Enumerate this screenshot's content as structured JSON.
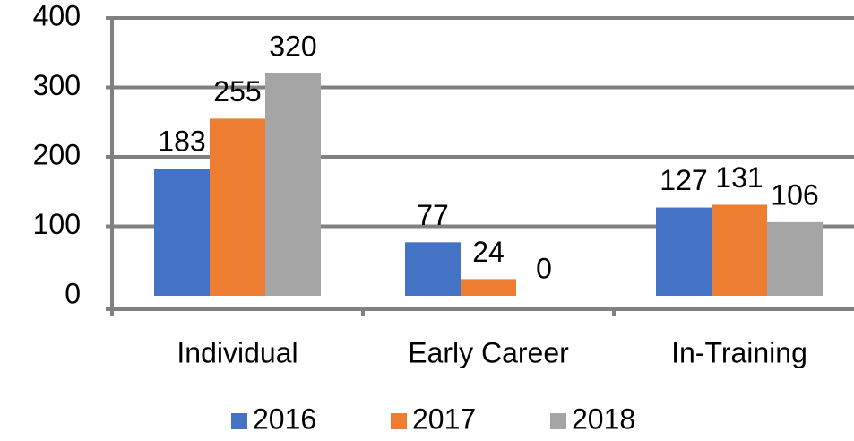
{
  "chart_data": {
    "type": "bar",
    "categories": [
      "Individual",
      "Early Career",
      "In-Training"
    ],
    "series": [
      {
        "name": "2016",
        "color": "#4472c4",
        "values": [
          183,
          77,
          127
        ]
      },
      {
        "name": "2017",
        "color": "#ed7d31",
        "values": [
          255,
          24,
          131
        ]
      },
      {
        "name": "2018",
        "color": "#a5a5a5",
        "values": [
          320,
          0,
          106
        ]
      }
    ],
    "ylim": [
      0,
      400
    ],
    "yticks": [
      0,
      100,
      200,
      300,
      400
    ],
    "grid": true,
    "legend": "bottom"
  }
}
